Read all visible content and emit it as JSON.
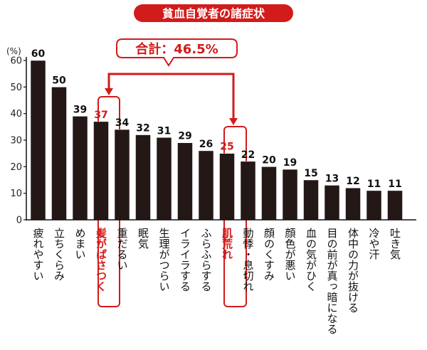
{
  "chart_data": {
    "type": "bar",
    "title": "貧血自覚者の諸症状",
    "ylabel": "(%)",
    "ylim": [
      0,
      60
    ],
    "yticks": [
      0,
      10,
      20,
      30,
      40,
      50,
      60
    ],
    "categories": [
      "疲れやすい",
      "立ちくらみ",
      "めまい",
      "髪がぱさつく",
      "重だるい",
      "眠気",
      "生理がつらい",
      "イライラする",
      "ふらふらする",
      "肌荒れ",
      "動悸・息切れ",
      "顔のくすみ",
      "顔色が悪い",
      "血の気がひく",
      "目の前が真っ暗になる",
      "体中の力が抜ける",
      "冷や汗",
      "吐き気"
    ],
    "values": [
      60,
      50,
      39,
      37,
      34,
      32,
      31,
      29,
      26,
      25,
      22,
      20,
      19,
      15,
      13,
      12,
      11,
      11
    ],
    "highlighted": [
      "髪がぱさつく",
      "肌荒れ"
    ],
    "annotation": "合計：46.5%",
    "bar_color": "#231815",
    "highlight_color": "#d21b1b",
    "title_bg_color": "#d21b1b"
  }
}
